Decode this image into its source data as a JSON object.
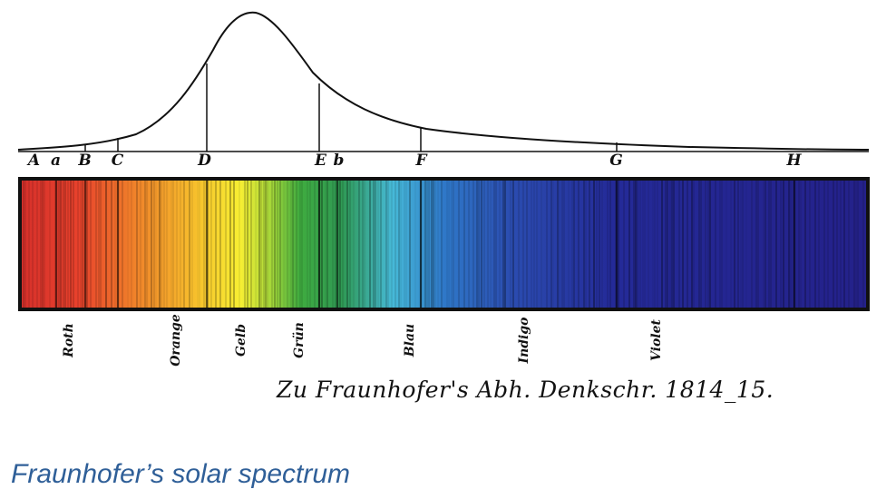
{
  "colors": {
    "ink": "#111111",
    "caption_blue": "#2f5f98",
    "spectrum_stops": [
      "#d6302b",
      "#e8422c",
      "#f0862a",
      "#f7c22c",
      "#f7ef33",
      "#9cd43a",
      "#3fab3f",
      "#2f9a55",
      "#46b9d8",
      "#2f78c8",
      "#2b4cb0",
      "#242a98",
      "#24218a"
    ]
  },
  "line_labels": [
    {
      "id": "A",
      "text": "A"
    },
    {
      "id": "a",
      "text": "a"
    },
    {
      "id": "B",
      "text": "B"
    },
    {
      "id": "C",
      "text": "C"
    },
    {
      "id": "D",
      "text": "D"
    },
    {
      "id": "E",
      "text": "E"
    },
    {
      "id": "b",
      "text": "b"
    },
    {
      "id": "F",
      "text": "F"
    },
    {
      "id": "G",
      "text": "G"
    },
    {
      "id": "H",
      "text": "H"
    }
  ],
  "color_names": [
    {
      "id": "roth",
      "text": "Roth"
    },
    {
      "id": "orange",
      "text": "Orange"
    },
    {
      "id": "gelb",
      "text": "Gelb"
    },
    {
      "id": "gruen",
      "text": "Grün"
    },
    {
      "id": "blau",
      "text": "Blau"
    },
    {
      "id": "indigo",
      "text": "Indigo"
    },
    {
      "id": "violet",
      "text": "Violet"
    }
  ],
  "engraving_caption": "Zu Fraunhofer's Abh. Denkschr. 1814_15.",
  "slide_caption": "Fraunhofer’s solar spectrum"
}
